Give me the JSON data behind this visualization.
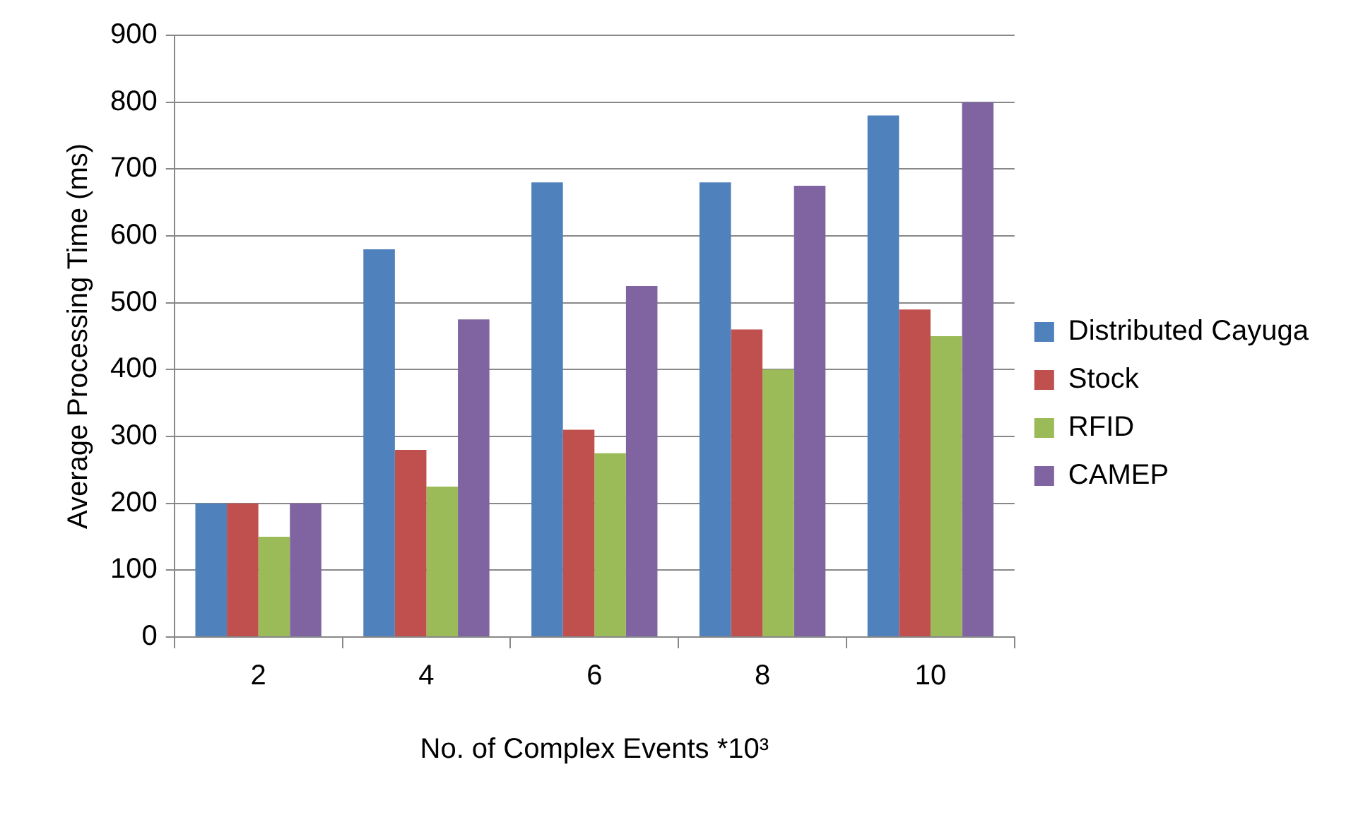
{
  "chart_data": {
    "type": "bar",
    "xlabel": "No. of Complex Events *10³",
    "ylabel": "Average Processing Time (ms)",
    "categories": [
      "2",
      "4",
      "6",
      "8",
      "10"
    ],
    "series": [
      {
        "name": "Distributed Cayuga",
        "color": "#4f81bd",
        "values": [
          200,
          580,
          680,
          680,
          780
        ]
      },
      {
        "name": "Stock",
        "color": "#c0504d",
        "values": [
          200,
          280,
          310,
          460,
          490
        ]
      },
      {
        "name": "RFID",
        "color": "#9bbb59",
        "values": [
          150,
          225,
          275,
          400,
          450
        ]
      },
      {
        "name": "CAMEP",
        "color": "#8064a2",
        "values": [
          200,
          475,
          525,
          675,
          800
        ]
      }
    ],
    "ylim": [
      0,
      900
    ],
    "yticks": [
      0,
      100,
      200,
      300,
      400,
      500,
      600,
      700,
      800,
      900
    ],
    "grid": "y",
    "legend": "right"
  }
}
